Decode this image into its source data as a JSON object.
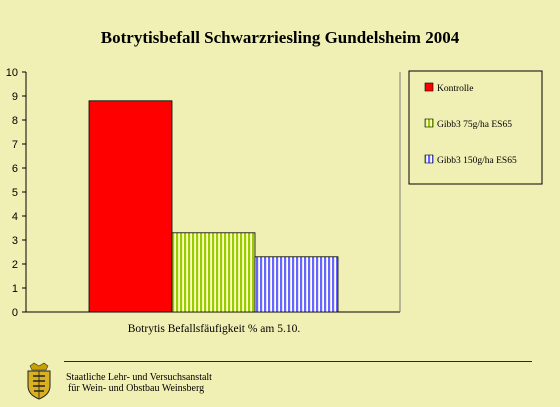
{
  "chart_data": {
    "type": "bar",
    "title": "Botrytisbefall Schwarzriesling Gundelsheim 2004",
    "categories": [
      "Botrytis Befallsfäufigkeit % am 5.10."
    ],
    "series": [
      {
        "name": "Kontrolle",
        "values": [
          8.8
        ],
        "color": "#ff0000",
        "pattern": "solid"
      },
      {
        "name": "Gibb3 75g/ha ES65",
        "values": [
          3.3
        ],
        "color": "#99cc00",
        "pattern": "vertical-stripes"
      },
      {
        "name": "Gibb3 150g/ha ES65",
        "values": [
          2.3
        ],
        "color": "#6666ff",
        "pattern": "vertical-stripes"
      }
    ],
    "ylim": [
      0,
      10
    ],
    "yticks": [
      "0",
      "1",
      "2",
      "3",
      "4",
      "5",
      "6",
      "7",
      "8",
      "9",
      "10"
    ],
    "grid": false,
    "legend_position": "right"
  },
  "footer": {
    "line1": "Staatliche Lehr- und Versuchsanstalt",
    "line2": "für Wein- und Obstbau Weinsberg"
  }
}
